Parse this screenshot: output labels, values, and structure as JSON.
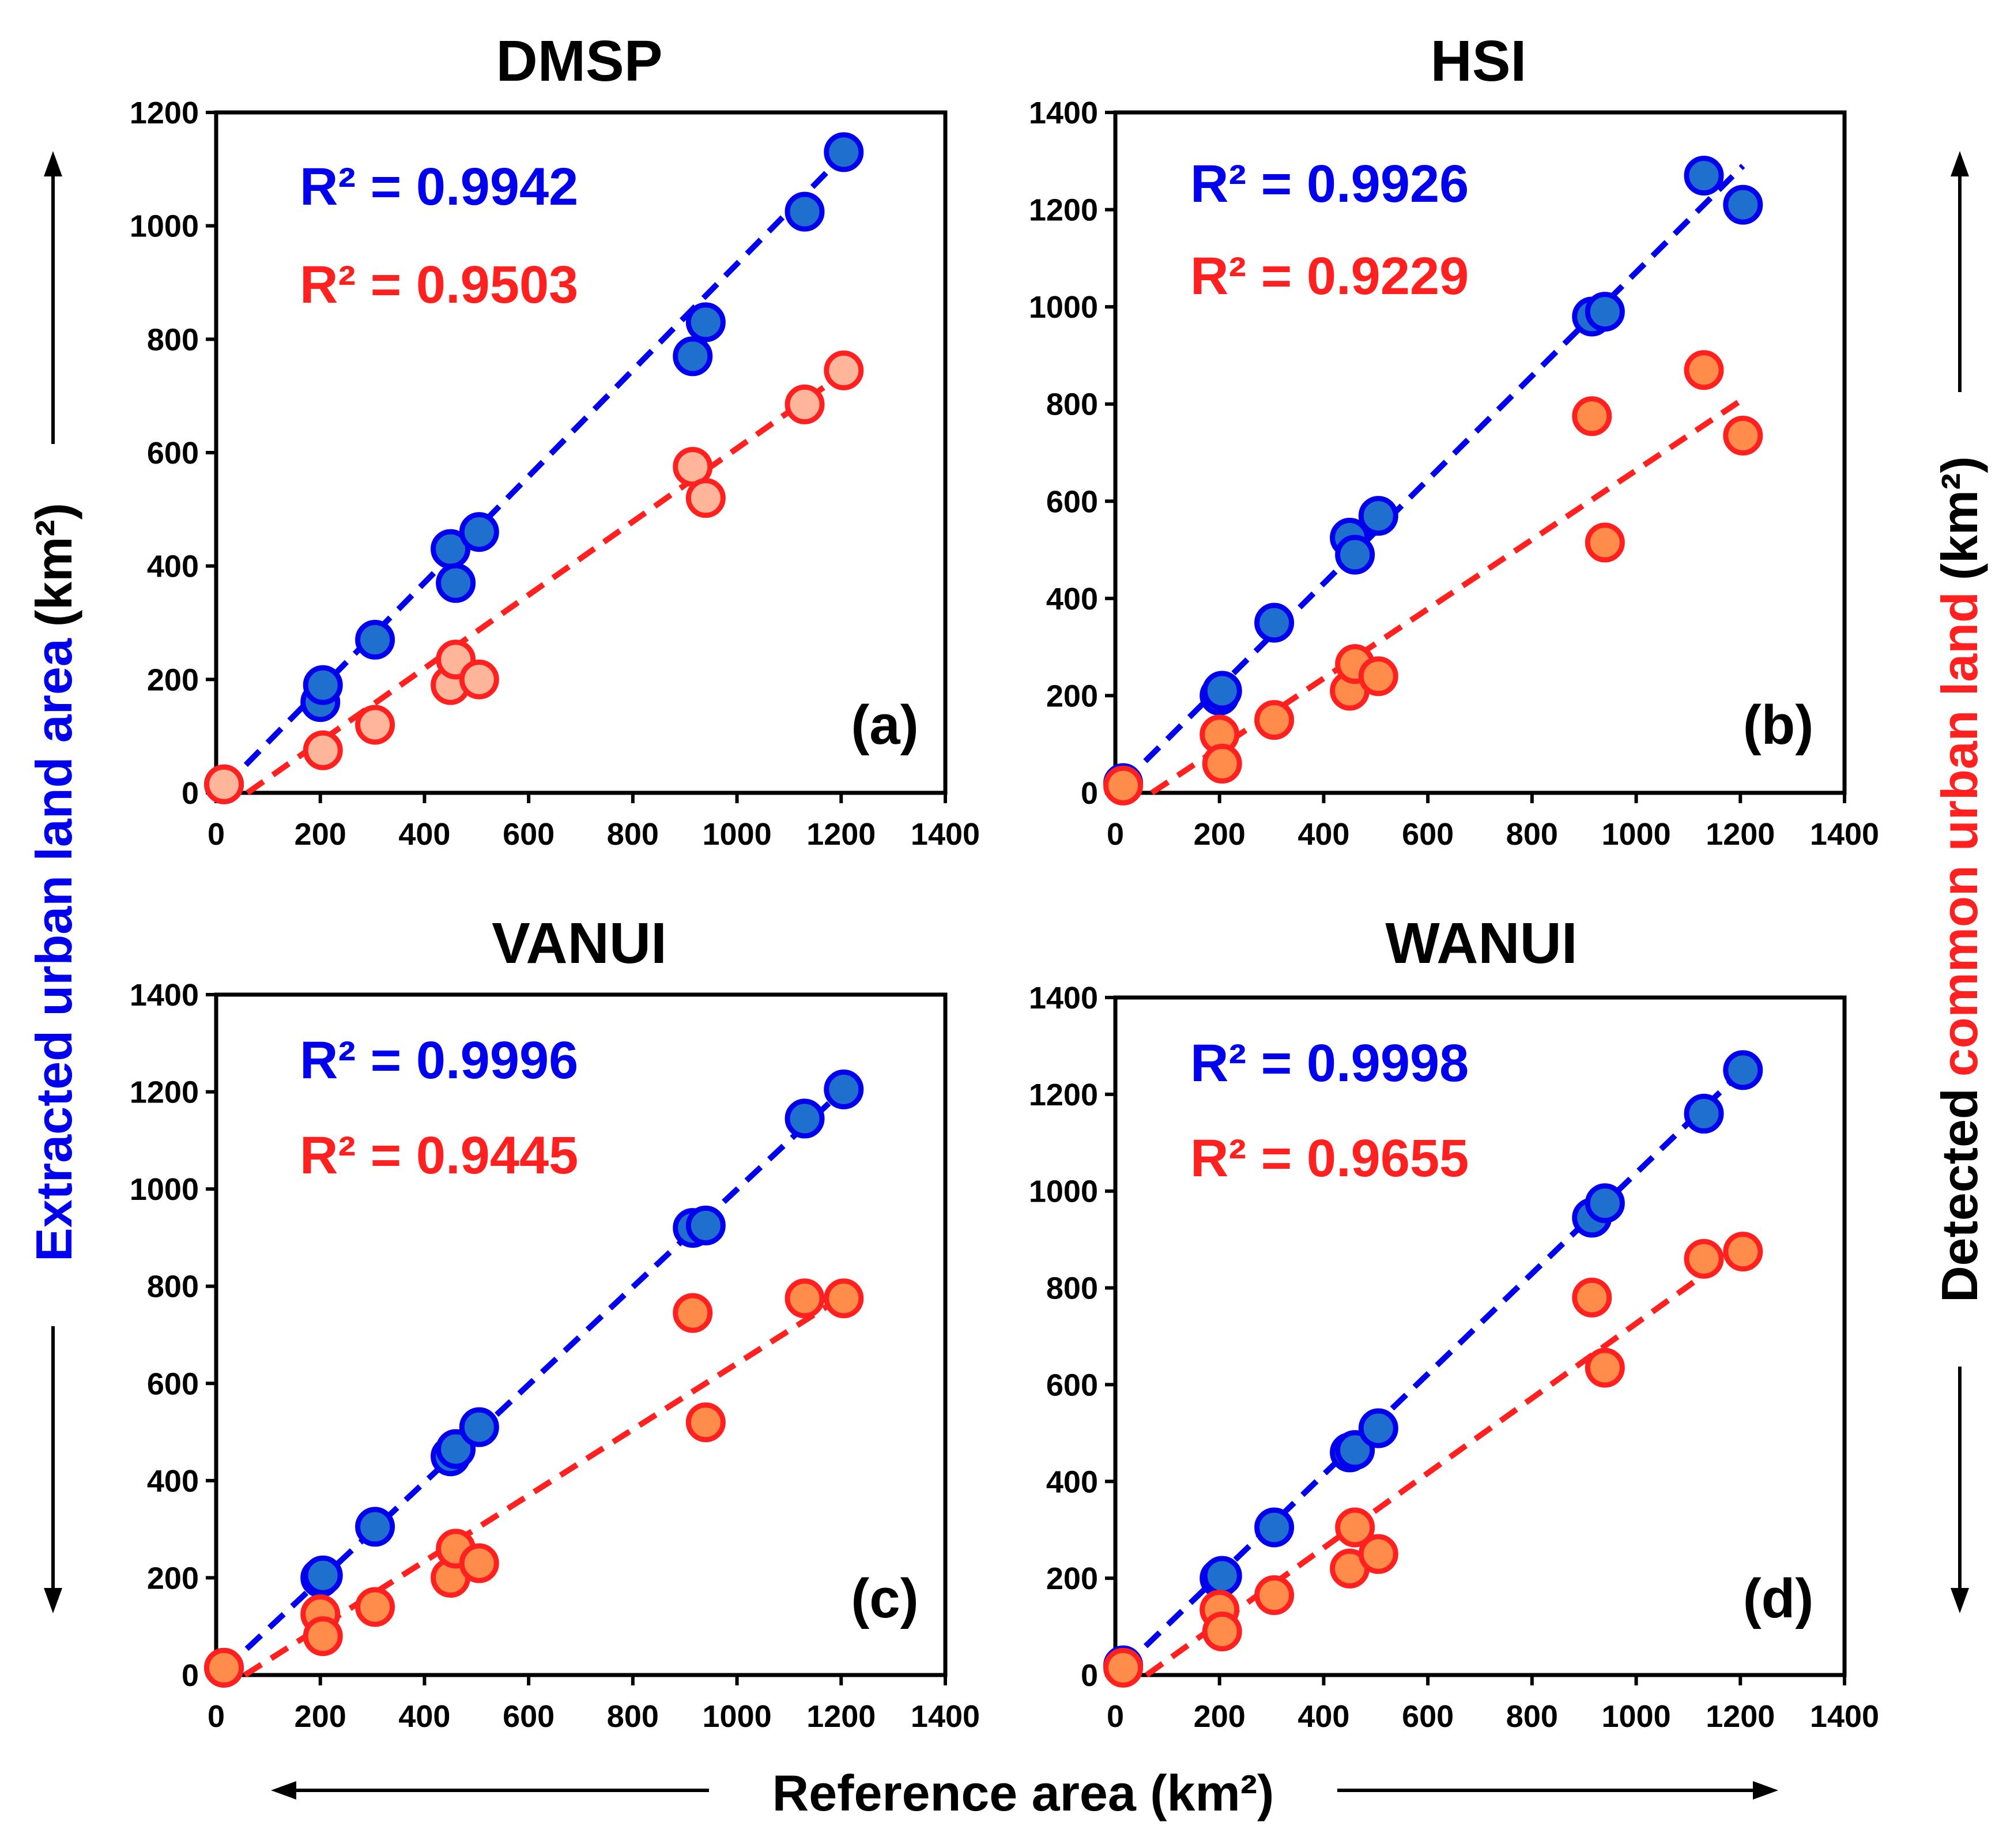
{
  "figure": {
    "y_label_left": "Extracted urban land area",
    "y_label_unit": "(km²)",
    "y_label_right_prefix": "Detected",
    "y_label_right_highlight": "common urban land",
    "y_label_right_unit": "(km²)",
    "x_label": "Reference area (km²)"
  },
  "colors": {
    "extracted_fill": "#1f6fce",
    "extracted_edge": "#0000ee",
    "extracted_line": "#0000ee",
    "common_fill": "#ff8c4a",
    "common_fill_light": "#ffb59a",
    "common_edge": "#ff2020",
    "common_line": "#ff2020"
  },
  "chart_data": [
    {
      "type": "scatter",
      "title": "DMSP",
      "panel_label": "(a)",
      "xlim": [
        0,
        1400
      ],
      "ylim": [
        0,
        1200
      ],
      "xticks": [
        0,
        200,
        400,
        600,
        800,
        1000,
        1200,
        1400
      ],
      "yticks": [
        0,
        200,
        400,
        600,
        800,
        1000,
        1200
      ],
      "series": [
        {
          "name": "Extracted urban land area",
          "r2_label": "R² = 0.9942",
          "x": [
            15,
            200,
            205,
            305,
            450,
            460,
            505,
            915,
            940,
            1130,
            1205
          ],
          "y": [
            15,
            160,
            190,
            270,
            430,
            370,
            460,
            770,
            830,
            1025,
            1130
          ],
          "fit": [
            [
              15,
              10
            ],
            [
              1205,
              1125
            ]
          ]
        },
        {
          "name": "Detected common urban land",
          "r2_label": "R² = 0.9503",
          "x": [
            15,
            205,
            305,
            450,
            460,
            505,
            915,
            940,
            1130,
            1205
          ],
          "y": [
            15,
            75,
            120,
            190,
            235,
            200,
            575,
            520,
            685,
            745
          ],
          "fit": [
            [
              60,
              0
            ],
            [
              1205,
              740
            ]
          ]
        }
      ]
    },
    {
      "type": "scatter",
      "title": "HSI",
      "panel_label": "(b)",
      "xlim": [
        0,
        1400
      ],
      "ylim": [
        0,
        1400
      ],
      "xticks": [
        0,
        200,
        400,
        600,
        800,
        1000,
        1200,
        1400
      ],
      "yticks": [
        0,
        200,
        400,
        600,
        800,
        1000,
        1200,
        1400
      ],
      "series": [
        {
          "name": "Extracted urban land area",
          "r2_label": "R² = 0.9926",
          "x": [
            15,
            200,
            205,
            305,
            450,
            460,
            505,
            915,
            940,
            1130,
            1205
          ],
          "y": [
            20,
            200,
            210,
            350,
            525,
            490,
            570,
            980,
            990,
            1270,
            1210
          ],
          "fit": [
            [
              15,
              20
            ],
            [
              1205,
              1290
            ]
          ]
        },
        {
          "name": "Detected common urban land",
          "r2_label": "R² = 0.9229",
          "x": [
            15,
            200,
            205,
            305,
            450,
            460,
            505,
            915,
            940,
            1130,
            1205
          ],
          "y": [
            15,
            120,
            60,
            150,
            210,
            265,
            240,
            775,
            515,
            870,
            735
          ],
          "fit": [
            [
              70,
              0
            ],
            [
              1205,
              810
            ]
          ]
        }
      ]
    },
    {
      "type": "scatter",
      "title": "VANUI",
      "panel_label": "(c)",
      "xlim": [
        0,
        1400
      ],
      "ylim": [
        0,
        1400
      ],
      "xticks": [
        0,
        200,
        400,
        600,
        800,
        1000,
        1200,
        1400
      ],
      "yticks": [
        0,
        200,
        400,
        600,
        800,
        1000,
        1200,
        1400
      ],
      "series": [
        {
          "name": "Extracted urban land area",
          "r2_label": "R² = 0.9996",
          "x": [
            15,
            200,
            205,
            305,
            450,
            460,
            505,
            915,
            940,
            1130,
            1205
          ],
          "y": [
            15,
            200,
            205,
            305,
            450,
            465,
            510,
            920,
            925,
            1145,
            1205
          ],
          "fit": [
            [
              15,
              10
            ],
            [
              1205,
              1205
            ]
          ]
        },
        {
          "name": "Detected common urban land",
          "r2_label": "R² = 0.9445",
          "x": [
            15,
            200,
            205,
            305,
            450,
            460,
            505,
            915,
            940,
            1130,
            1205
          ],
          "y": [
            15,
            125,
            80,
            140,
            200,
            260,
            230,
            745,
            520,
            775,
            775
          ],
          "fit": [
            [
              55,
              0
            ],
            [
              1205,
              780
            ]
          ]
        }
      ]
    },
    {
      "type": "scatter",
      "title": "WANUI",
      "panel_label": "(d)",
      "xlim": [
        0,
        1400
      ],
      "ylim": [
        0,
        1400
      ],
      "xticks": [
        0,
        200,
        400,
        600,
        800,
        1000,
        1200,
        1400
      ],
      "yticks": [
        0,
        200,
        400,
        600,
        800,
        1000,
        1200,
        1400
      ],
      "series": [
        {
          "name": "Extracted urban land area",
          "r2_label": "R² = 0.9998",
          "x": [
            15,
            200,
            205,
            305,
            450,
            460,
            505,
            915,
            940,
            1130,
            1205
          ],
          "y": [
            20,
            200,
            205,
            305,
            460,
            465,
            510,
            945,
            975,
            1160,
            1250
          ],
          "fit": [
            [
              15,
              15
            ],
            [
              1205,
              1250
            ]
          ]
        },
        {
          "name": "Detected common urban land",
          "r2_label": "R² = 0.9655",
          "x": [
            15,
            200,
            205,
            305,
            450,
            460,
            505,
            915,
            940,
            1130,
            1205
          ],
          "y": [
            15,
            135,
            90,
            165,
            220,
            305,
            250,
            780,
            635,
            860,
            875
          ],
          "fit": [
            [
              60,
              0
            ],
            [
              1205,
              885
            ]
          ]
        }
      ]
    }
  ]
}
